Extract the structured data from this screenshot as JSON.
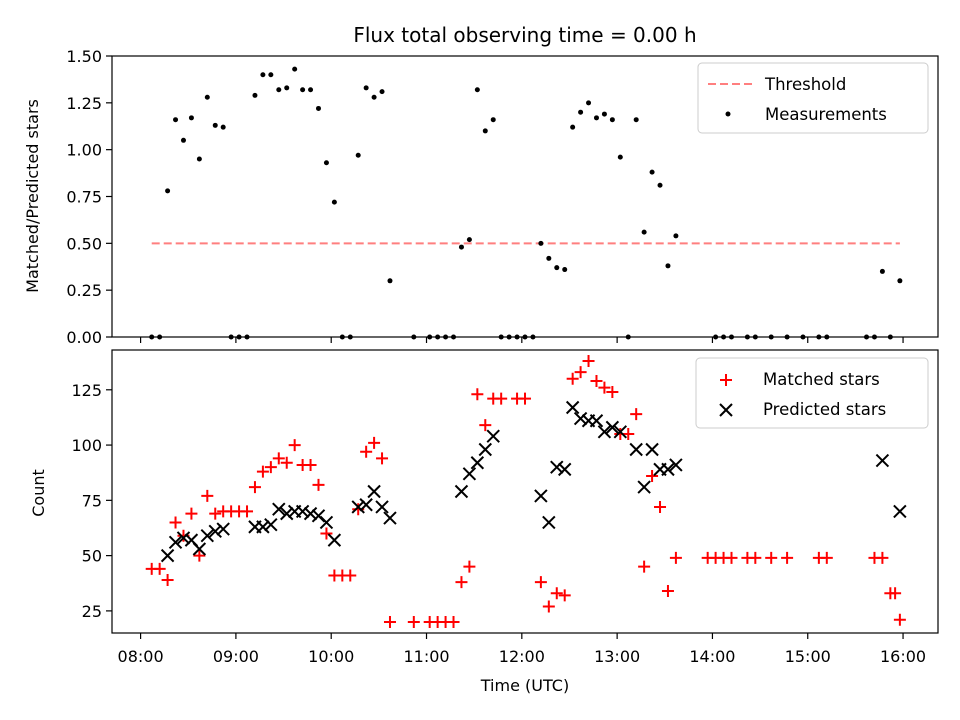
{
  "title": "Flux total observing time = 0.00 h",
  "xlabel": "Time (UTC)",
  "x_ticks": [
    "08:00",
    "09:00",
    "10:00",
    "11:00",
    "12:00",
    "13:00",
    "14:00",
    "15:00",
    "16:00"
  ],
  "colors": {
    "threshold": "#ff7f7f",
    "measurements": "#000000",
    "matched": "#ff0000",
    "predicted": "#000000"
  },
  "chart_data": [
    {
      "type": "scatter",
      "ylabel": "Matched/Predicted stars",
      "xlim": [
        "07:42",
        "16:22"
      ],
      "ylim": [
        0,
        1.5
      ],
      "y_ticks": [
        "0.00",
        "0.25",
        "0.50",
        "0.75",
        "1.00",
        "1.25",
        "1.50"
      ],
      "legend_position": "top-right",
      "series": [
        {
          "name": "Threshold",
          "kind": "dashed-line",
          "x": [
            "08:07",
            "15:58"
          ],
          "y": [
            0.5,
            0.5
          ]
        },
        {
          "name": "Measurements",
          "kind": "dot",
          "points": [
            [
              "08:07",
              0.0
            ],
            [
              "08:12",
              0.0
            ],
            [
              "08:17",
              0.78
            ],
            [
              "08:22",
              1.16
            ],
            [
              "08:27",
              1.05
            ],
            [
              "08:32",
              1.17
            ],
            [
              "08:37",
              0.95
            ],
            [
              "08:42",
              1.28
            ],
            [
              "08:47",
              1.13
            ],
            [
              "08:52",
              1.12
            ],
            [
              "08:57",
              0.0
            ],
            [
              "09:02",
              0.0
            ],
            [
              "09:07",
              0.0
            ],
            [
              "09:12",
              1.29
            ],
            [
              "09:17",
              1.4
            ],
            [
              "09:22",
              1.4
            ],
            [
              "09:27",
              1.32
            ],
            [
              "09:32",
              1.33
            ],
            [
              "09:37",
              1.43
            ],
            [
              "09:42",
              1.32
            ],
            [
              "09:47",
              1.32
            ],
            [
              "09:52",
              1.22
            ],
            [
              "09:57",
              0.93
            ],
            [
              "10:02",
              0.72
            ],
            [
              "10:07",
              0.0
            ],
            [
              "10:12",
              0.0
            ],
            [
              "10:17",
              0.97
            ],
            [
              "10:22",
              1.33
            ],
            [
              "10:27",
              1.28
            ],
            [
              "10:32",
              1.31
            ],
            [
              "10:37",
              0.3
            ],
            [
              "10:52",
              0.0
            ],
            [
              "11:02",
              0.0
            ],
            [
              "11:07",
              0.0
            ],
            [
              "11:12",
              0.0
            ],
            [
              "11:17",
              0.0
            ],
            [
              "11:22",
              0.48
            ],
            [
              "11:27",
              0.52
            ],
            [
              "11:32",
              1.32
            ],
            [
              "11:37",
              1.1
            ],
            [
              "11:42",
              1.16
            ],
            [
              "11:47",
              0.0
            ],
            [
              "11:52",
              0.0
            ],
            [
              "11:57",
              0.0
            ],
            [
              "12:02",
              0.0
            ],
            [
              "12:07",
              0.0
            ],
            [
              "12:12",
              0.5
            ],
            [
              "12:17",
              0.42
            ],
            [
              "12:22",
              0.37
            ],
            [
              "12:27",
              0.36
            ],
            [
              "12:32",
              1.12
            ],
            [
              "12:37",
              1.2
            ],
            [
              "12:42",
              1.25
            ],
            [
              "12:47",
              1.17
            ],
            [
              "12:52",
              1.19
            ],
            [
              "12:57",
              1.16
            ],
            [
              "13:02",
              0.96
            ],
            [
              "13:07",
              0.0
            ],
            [
              "13:12",
              1.16
            ],
            [
              "13:17",
              0.56
            ],
            [
              "13:22",
              0.88
            ],
            [
              "13:27",
              0.81
            ],
            [
              "13:32",
              0.38
            ],
            [
              "13:37",
              0.54
            ],
            [
              "14:02",
              0.0
            ],
            [
              "14:07",
              0.0
            ],
            [
              "14:12",
              0.0
            ],
            [
              "14:22",
              0.0
            ],
            [
              "14:27",
              0.0
            ],
            [
              "14:37",
              0.0
            ],
            [
              "14:47",
              0.0
            ],
            [
              "14:57",
              0.0
            ],
            [
              "15:07",
              0.0
            ],
            [
              "15:12",
              0.0
            ],
            [
              "15:37",
              0.0
            ],
            [
              "15:42",
              0.0
            ],
            [
              "15:47",
              0.35
            ],
            [
              "15:52",
              0.0
            ],
            [
              "15:58",
              0.3
            ]
          ]
        }
      ]
    },
    {
      "type": "scatter",
      "ylabel": "Count",
      "xlim": [
        "07:42",
        "16:22"
      ],
      "ylim": [
        15,
        143
      ],
      "y_ticks": [
        "25",
        "50",
        "75",
        "100",
        "125"
      ],
      "legend_position": "top-right",
      "series": [
        {
          "name": "Matched stars",
          "kind": "plus",
          "points": [
            [
              "08:07",
              44
            ],
            [
              "08:12",
              44
            ],
            [
              "08:17",
              39
            ],
            [
              "08:22",
              65
            ],
            [
              "08:27",
              59
            ],
            [
              "08:32",
              69
            ],
            [
              "08:37",
              50
            ],
            [
              "08:42",
              77
            ],
            [
              "08:47",
              69
            ],
            [
              "08:52",
              70
            ],
            [
              "08:57",
              70
            ],
            [
              "09:02",
              70
            ],
            [
              "09:07",
              70
            ],
            [
              "09:12",
              81
            ],
            [
              "09:17",
              88
            ],
            [
              "09:22",
              90
            ],
            [
              "09:27",
              94
            ],
            [
              "09:32",
              92
            ],
            [
              "09:37",
              100
            ],
            [
              "09:42",
              91
            ],
            [
              "09:47",
              91
            ],
            [
              "09:52",
              82
            ],
            [
              "09:57",
              60
            ],
            [
              "10:02",
              41
            ],
            [
              "10:07",
              41
            ],
            [
              "10:12",
              41
            ],
            [
              "10:17",
              71
            ],
            [
              "10:22",
              97
            ],
            [
              "10:27",
              101
            ],
            [
              "10:32",
              94
            ],
            [
              "10:37",
              20
            ],
            [
              "10:52",
              20
            ],
            [
              "11:02",
              20
            ],
            [
              "11:07",
              20
            ],
            [
              "11:12",
              20
            ],
            [
              "11:17",
              20
            ],
            [
              "11:22",
              38
            ],
            [
              "11:27",
              45
            ],
            [
              "11:32",
              123
            ],
            [
              "11:37",
              109
            ],
            [
              "11:42",
              121
            ],
            [
              "11:47",
              121
            ],
            [
              "11:57",
              121
            ],
            [
              "12:02",
              121
            ],
            [
              "12:12",
              38
            ],
            [
              "12:17",
              27
            ],
            [
              "12:22",
              33
            ],
            [
              "12:27",
              32
            ],
            [
              "12:32",
              130
            ],
            [
              "12:37",
              133
            ],
            [
              "12:42",
              138
            ],
            [
              "12:47",
              129
            ],
            [
              "12:52",
              126
            ],
            [
              "12:57",
              124
            ],
            [
              "13:02",
              105
            ],
            [
              "13:07",
              105
            ],
            [
              "13:12",
              114
            ],
            [
              "13:17",
              45
            ],
            [
              "13:22",
              86
            ],
            [
              "13:27",
              72
            ],
            [
              "13:32",
              34
            ],
            [
              "13:37",
              49
            ],
            [
              "13:57",
              49
            ],
            [
              "14:02",
              49
            ],
            [
              "14:07",
              49
            ],
            [
              "14:12",
              49
            ],
            [
              "14:22",
              49
            ],
            [
              "14:27",
              49
            ],
            [
              "14:37",
              49
            ],
            [
              "14:47",
              49
            ],
            [
              "15:07",
              49
            ],
            [
              "15:12",
              49
            ],
            [
              "15:42",
              49
            ],
            [
              "15:47",
              49
            ],
            [
              "15:52",
              33
            ],
            [
              "15:55",
              33
            ],
            [
              "15:58",
              21
            ]
          ]
        },
        {
          "name": "Predicted stars",
          "kind": "cross",
          "points": [
            [
              "08:17",
              50
            ],
            [
              "08:22",
              56
            ],
            [
              "08:27",
              58
            ],
            [
              "08:32",
              57
            ],
            [
              "08:37",
              53
            ],
            [
              "08:42",
              59
            ],
            [
              "08:47",
              61
            ],
            [
              "08:52",
              62
            ],
            [
              "09:12",
              63
            ],
            [
              "09:17",
              63
            ],
            [
              "09:22",
              64
            ],
            [
              "09:27",
              71
            ],
            [
              "09:32",
              69
            ],
            [
              "09:37",
              70
            ],
            [
              "09:42",
              70
            ],
            [
              "09:47",
              69
            ],
            [
              "09:52",
              68
            ],
            [
              "09:57",
              65
            ],
            [
              "10:02",
              57
            ],
            [
              "10:17",
              72
            ],
            [
              "10:22",
              73
            ],
            [
              "10:27",
              79
            ],
            [
              "10:32",
              72
            ],
            [
              "10:37",
              67
            ],
            [
              "11:22",
              79
            ],
            [
              "11:27",
              87
            ],
            [
              "11:32",
              92
            ],
            [
              "11:37",
              98
            ],
            [
              "11:42",
              104
            ],
            [
              "12:12",
              77
            ],
            [
              "12:17",
              65
            ],
            [
              "12:22",
              90
            ],
            [
              "12:27",
              89
            ],
            [
              "12:32",
              117
            ],
            [
              "12:37",
              112
            ],
            [
              "12:42",
              111
            ],
            [
              "12:47",
              111
            ],
            [
              "12:52",
              106
            ],
            [
              "12:57",
              108
            ],
            [
              "13:02",
              106
            ],
            [
              "13:12",
              98
            ],
            [
              "13:17",
              81
            ],
            [
              "13:22",
              98
            ],
            [
              "13:27",
              89
            ],
            [
              "13:32",
              89
            ],
            [
              "13:37",
              91
            ],
            [
              "15:47",
              93
            ],
            [
              "15:58",
              70
            ]
          ]
        }
      ]
    }
  ]
}
